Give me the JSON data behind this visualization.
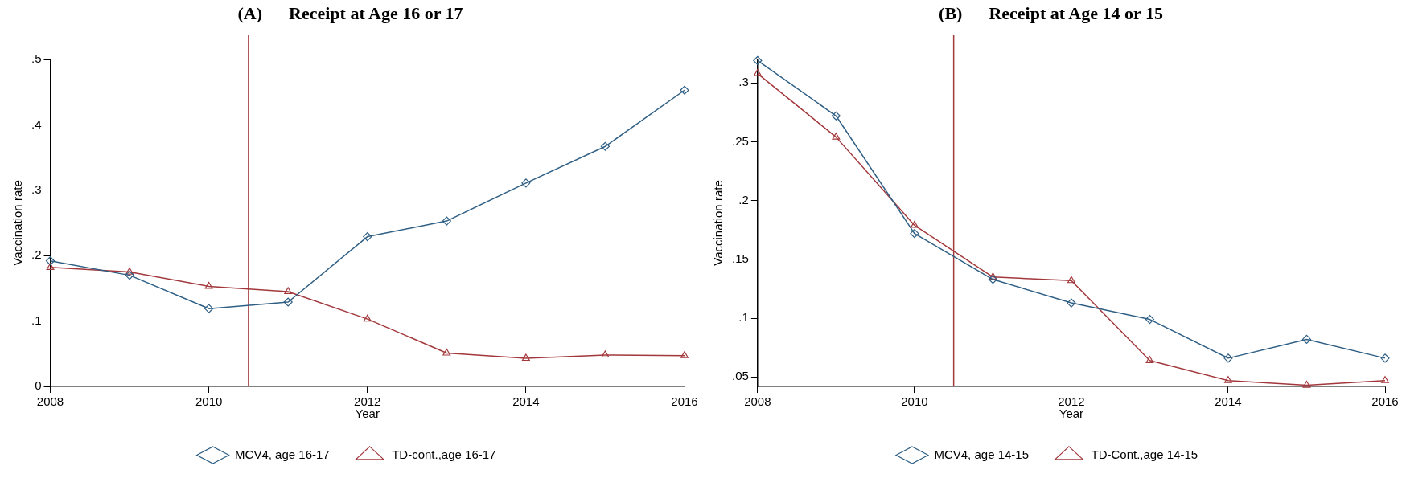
{
  "chart_data": [
    {
      "type": "line",
      "title": "(A)      Receipt at Age 16 or 17",
      "xlabel": "Year",
      "ylabel": "Vaccination rate",
      "x": [
        2008,
        2009,
        2010,
        2011,
        2012,
        2013,
        2014,
        2015,
        2016
      ],
      "series": [
        {
          "name": "MCV4, age 16-17",
          "color": "#2f5f84",
          "marker": "diamond",
          "values": [
            0.192,
            0.17,
            0.119,
            0.129,
            0.229,
            0.253,
            0.311,
            0.367,
            0.453
          ]
        },
        {
          "name": "TD-cont.,age 16-17",
          "color": "#a3383c",
          "marker": "triangle",
          "values": [
            0.182,
            0.175,
            0.153,
            0.145,
            0.103,
            0.051,
            0.043,
            0.048,
            0.047
          ]
        }
      ],
      "xlim": [
        2008,
        2016
      ],
      "xticks": [
        2008,
        2010,
        2012,
        2014,
        2016
      ],
      "ylim": [
        0,
        0.5
      ],
      "yticks": [
        {
          "value": 0,
          "label": "0"
        },
        {
          "value": 0.1,
          "label": ".1"
        },
        {
          "value": 0.2,
          "label": ".2"
        },
        {
          "value": 0.3,
          "label": ".3"
        },
        {
          "value": 0.4,
          "label": ".4"
        },
        {
          "value": 0.5,
          "label": ".5"
        }
      ],
      "ref_lines": [
        {
          "axis": "x",
          "value": 2010.5,
          "color": "#a3383c"
        }
      ],
      "grid": false,
      "legend": "bottom",
      "line_style": "solid"
    },
    {
      "type": "line",
      "title": "(B)      Receipt at Age 14 or 15",
      "xlabel": "Year",
      "ylabel": "Vaccination rate",
      "x": [
        2008,
        2009,
        2010,
        2011,
        2012,
        2013,
        2014,
        2015,
        2016
      ],
      "series": [
        {
          "name": "MCV4, age 14-15",
          "color": "#2f5f84",
          "marker": "diamond",
          "values": [
            0.319,
            0.272,
            0.172,
            0.133,
            0.113,
            0.099,
            0.066,
            0.082,
            0.066
          ]
        },
        {
          "name": "TD-Cont.,age 14-15",
          "color": "#a3383c",
          "marker": "triangle",
          "values": [
            0.308,
            0.254,
            0.179,
            0.135,
            0.132,
            0.064,
            0.047,
            0.043,
            0.047
          ]
        }
      ],
      "xlim": [
        2008,
        2016
      ],
      "xticks": [
        2008,
        2010,
        2012,
        2014,
        2016
      ],
      "ylim": [
        0.042,
        0.32
      ],
      "yticks": [
        {
          "value": 0.05,
          "label": ".05"
        },
        {
          "value": 0.1,
          "label": ".1"
        },
        {
          "value": 0.15,
          "label": ".15"
        },
        {
          "value": 0.2,
          "label": ".2"
        },
        {
          "value": 0.25,
          "label": ".25"
        },
        {
          "value": 0.3,
          "label": ".3"
        }
      ],
      "ref_lines": [
        {
          "axis": "x",
          "value": 2010.5,
          "color": "#a3383c"
        }
      ],
      "grid": false,
      "legend": "bottom",
      "line_style": "solid"
    }
  ]
}
